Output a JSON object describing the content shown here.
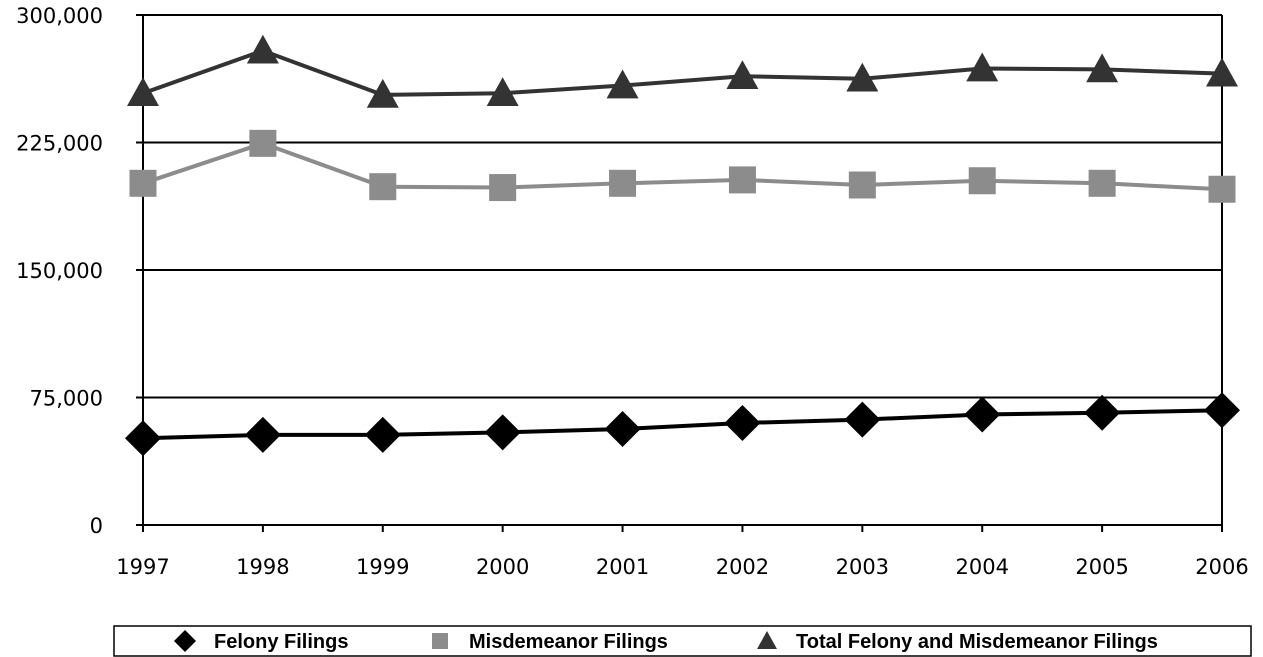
{
  "chart_data": {
    "type": "line",
    "title": "",
    "xlabel": "",
    "ylabel": "",
    "categories": [
      "1997",
      "1998",
      "1999",
      "2000",
      "2001",
      "2002",
      "2003",
      "2004",
      "2005",
      "2006"
    ],
    "ylim": [
      0,
      300000
    ],
    "yticks": [
      0,
      75000,
      150000,
      225000,
      300000
    ],
    "ytick_labels": [
      "0",
      "75,000",
      "150,000",
      "225,000",
      "300,000"
    ],
    "grid": "horizontal",
    "legend_position": "bottom",
    "series": [
      {
        "name": "Felony Filings",
        "marker": "diamond",
        "color": "#000000",
        "values": [
          51000,
          53000,
          53000,
          54500,
          56500,
          60000,
          62000,
          65000,
          66000,
          67500
        ]
      },
      {
        "name": "Misdemeanor Filings",
        "marker": "square",
        "color": "#8c8c8c",
        "values": [
          201000,
          224500,
          199000,
          198500,
          201000,
          203000,
          200000,
          202500,
          201000,
          197500
        ]
      },
      {
        "name": "Total Felony and Misdemeanor Filings",
        "marker": "triangle",
        "color": "#333333",
        "values": [
          254000,
          279000,
          253000,
          254000,
          258500,
          264000,
          262500,
          268500,
          268000,
          265500
        ]
      }
    ]
  }
}
